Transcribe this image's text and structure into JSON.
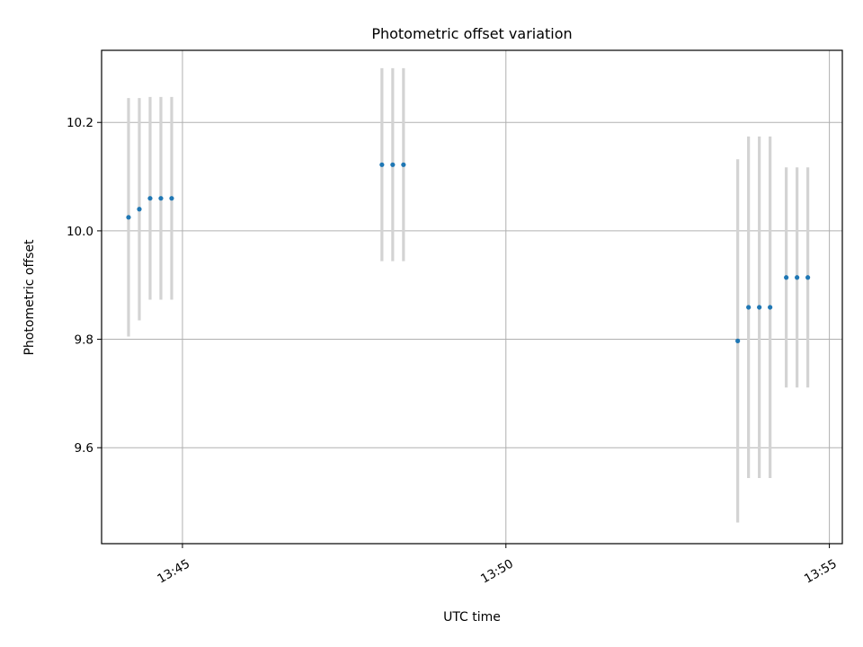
{
  "chart_data": {
    "type": "scatter",
    "title": "Photometric offset variation",
    "xlabel": "UTC time",
    "ylabel": "Photometric offset",
    "x_ticks": [
      "13:45",
      "13:50",
      "13:55"
    ],
    "y_ticks": [
      "9.6",
      "9.8",
      "10.0",
      "10.2"
    ],
    "y_tick_values": [
      9.6,
      9.8,
      10.0,
      10.2
    ],
    "x_tick_minutes": [
      45,
      50,
      55
    ],
    "xlim_minutes": [
      43.75,
      55.2
    ],
    "ylim": [
      9.423,
      10.333
    ],
    "grid": true,
    "point_color": "#1f77b4",
    "errorbar_color": "#d3d3d3",
    "points": [
      {
        "t": "13:44:10",
        "y": 10.025,
        "err": 0.22
      },
      {
        "t": "13:44:20",
        "y": 10.04,
        "err": 0.205
      },
      {
        "t": "13:44:30",
        "y": 10.06,
        "err": 0.187
      },
      {
        "t": "13:44:40",
        "y": 10.06,
        "err": 0.187
      },
      {
        "t": "13:44:50",
        "y": 10.06,
        "err": 0.187
      },
      {
        "t": "13:48:05",
        "y": 10.122,
        "err": 0.178
      },
      {
        "t": "13:48:15",
        "y": 10.122,
        "err": 0.178
      },
      {
        "t": "13:48:25",
        "y": 10.122,
        "err": 0.178
      },
      {
        "t": "13:53:35",
        "y": 9.797,
        "err": 0.335
      },
      {
        "t": "13:53:45",
        "y": 9.859,
        "err": 0.315
      },
      {
        "t": "13:53:55",
        "y": 9.859,
        "err": 0.315
      },
      {
        "t": "13:54:05",
        "y": 9.859,
        "err": 0.315
      },
      {
        "t": "13:54:20",
        "y": 9.914,
        "err": 0.203
      },
      {
        "t": "13:54:30",
        "y": 9.914,
        "err": 0.203
      },
      {
        "t": "13:54:40",
        "y": 9.914,
        "err": 0.203
      }
    ]
  }
}
